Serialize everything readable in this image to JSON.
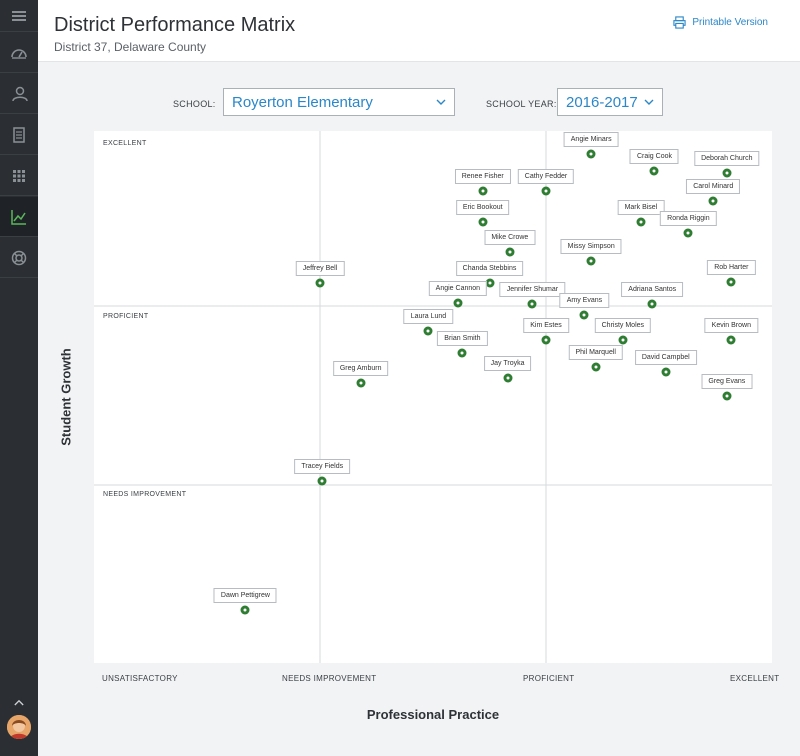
{
  "header": {
    "title": "District Performance Matrix",
    "subtitle": "District 37, Delaware County",
    "printable_label": "Printable Version"
  },
  "sidebar": {
    "items": [
      {
        "icon": "hamburger-menu-icon"
      },
      {
        "icon": "dashboard-gauge-icon"
      },
      {
        "icon": "users-icon"
      },
      {
        "icon": "documents-icon"
      },
      {
        "icon": "grid-icon"
      },
      {
        "icon": "line-chart-icon",
        "active": true
      },
      {
        "icon": "lifebuoy-icon"
      }
    ],
    "collapse_icon": "chevron-up-icon"
  },
  "filters": {
    "school_label": "SCHOOL:",
    "school_value": "Royerton Elementary",
    "year_label": "SCHOOL YEAR:",
    "year_value": "2016-2017"
  },
  "chart_data": {
    "type": "scatter",
    "xlabel": "Professional Practice",
    "ylabel": "Student Growth",
    "x_categories": [
      "UNSATISFACTORY",
      "NEEDS IMPROVEMENT",
      "PROFICIENT",
      "EXCELLENT"
    ],
    "y_bands": [
      "EXCELLENT",
      "PROFICIENT",
      "NEEDS IMPROVEMENT"
    ],
    "xlim": [
      0,
      3
    ],
    "ylim": [
      0,
      3
    ],
    "grid": true,
    "point_color": "#2f7d32",
    "points": [
      {
        "name": "Angie Minars",
        "x": 2.2,
        "y": 2.87
      },
      {
        "name": "Craig Cook",
        "x": 2.48,
        "y": 2.77
      },
      {
        "name": "Deborah Church",
        "x": 2.8,
        "y": 2.76
      },
      {
        "name": "Renee Fisher",
        "x": 1.72,
        "y": 2.66
      },
      {
        "name": "Cathy Fedder",
        "x": 2.0,
        "y": 2.66
      },
      {
        "name": "Carol Minard",
        "x": 2.74,
        "y": 2.6
      },
      {
        "name": "Eric Bookout",
        "x": 1.72,
        "y": 2.48
      },
      {
        "name": "Mark Bisel",
        "x": 2.42,
        "y": 2.48
      },
      {
        "name": "Ronda Riggin",
        "x": 2.63,
        "y": 2.42
      },
      {
        "name": "Mike Crowe",
        "x": 1.84,
        "y": 2.31
      },
      {
        "name": "Missy Simpson",
        "x": 2.2,
        "y": 2.26
      },
      {
        "name": "Jeffrey Bell",
        "x": 1.0,
        "y": 2.13
      },
      {
        "name": "Chanda Stebbins",
        "x": 1.75,
        "y": 2.13
      },
      {
        "name": "Rob Harter",
        "x": 2.82,
        "y": 2.14
      },
      {
        "name": "Angie Cannon",
        "x": 1.61,
        "y": 2.02
      },
      {
        "name": "Jennifer Shumar",
        "x": 1.94,
        "y": 2.01
      },
      {
        "name": "Adriana Santos",
        "x": 2.47,
        "y": 2.01
      },
      {
        "name": "Amy Evans",
        "x": 2.17,
        "y": 1.95
      },
      {
        "name": "Laura Lund",
        "x": 1.48,
        "y": 1.86
      },
      {
        "name": "Kim Estes",
        "x": 2.0,
        "y": 1.81
      },
      {
        "name": "Christy Moles",
        "x": 2.34,
        "y": 1.81
      },
      {
        "name": "Kevin Brown",
        "x": 2.82,
        "y": 1.81
      },
      {
        "name": "Brian Smith",
        "x": 1.63,
        "y": 1.74
      },
      {
        "name": "Phil Marquell",
        "x": 2.22,
        "y": 1.66
      },
      {
        "name": "David Campbel",
        "x": 2.53,
        "y": 1.63
      },
      {
        "name": "Jay Troyka",
        "x": 1.83,
        "y": 1.6
      },
      {
        "name": "Greg Amburn",
        "x": 1.18,
        "y": 1.57
      },
      {
        "name": "Greg Evans",
        "x": 2.8,
        "y": 1.5
      },
      {
        "name": "Tracey Fields",
        "x": 1.01,
        "y": 1.02
      },
      {
        "name": "Dawn Pettigrew",
        "x": 0.67,
        "y": 0.3
      }
    ]
  }
}
